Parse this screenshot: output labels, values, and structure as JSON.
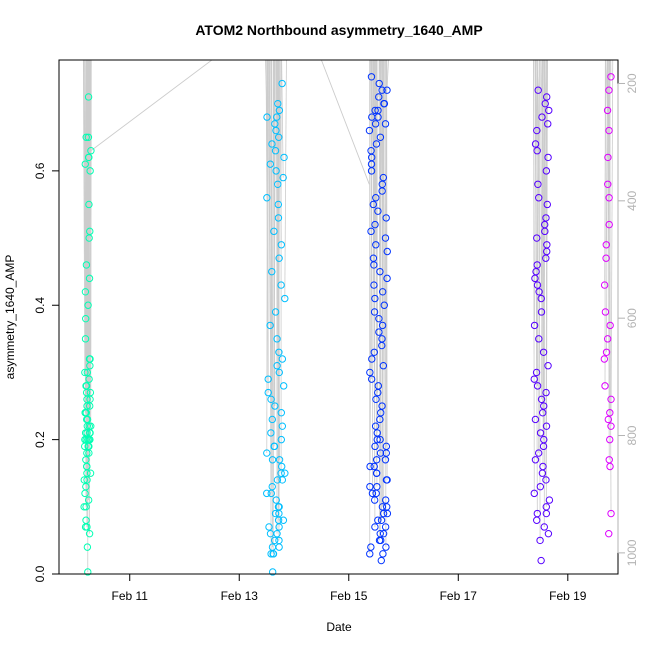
{
  "chart_data": {
    "type": "scatter",
    "title": "ATOM2 Northbound asymmetry_1640_AMP",
    "xlabel": "Date",
    "ylabel": "asymmetry_1640_AMP",
    "xlim": [
      "2015-02-09T17:00",
      "2015-02-19T22:00"
    ],
    "ylim": [
      0.0,
      0.765
    ],
    "x_ticks": [
      {
        "date": "2015-02-11",
        "label": "Feb 11"
      },
      {
        "date": "2015-02-13",
        "label": "Feb 13"
      },
      {
        "date": "2015-02-15",
        "label": "Feb 15"
      },
      {
        "date": "2015-02-17",
        "label": "Feb 17"
      },
      {
        "date": "2015-02-19",
        "label": "Feb 19"
      }
    ],
    "y_ticks": [
      0.0,
      0.2,
      0.4,
      0.6
    ],
    "y_tick_labels": [
      "0.0",
      "0.2",
      "0.4",
      "0.6"
    ],
    "right_axis": {
      "lim": [
        1036,
        160
      ],
      "ticks": [
        200,
        400,
        600,
        800,
        1000
      ],
      "tick_labels": [
        "200",
        "400",
        "600",
        "800",
        "1000"
      ],
      "color": "#b3b3b3"
    },
    "grid": false,
    "legend": "none",
    "line_color": "#cccccc",
    "series": [
      {
        "color": "#00ffb3",
        "x_range": [
          "2015-02-10T04:00",
          "2015-02-10T07:00"
        ],
        "values": [
          0.71,
          0.65,
          0.65,
          0.63,
          0.62,
          0.62,
          0.61,
          0.6,
          0.55,
          0.51,
          0.5,
          0.46,
          0.44,
          0.42,
          0.4,
          0.38,
          0.35,
          0.32,
          0.32,
          0.31,
          0.3,
          0.3,
          0.29,
          0.28,
          0.28,
          0.27,
          0.27,
          0.26,
          0.26,
          0.25,
          0.25,
          0.24,
          0.24,
          0.24,
          0.23,
          0.23,
          0.22,
          0.22,
          0.22,
          0.21,
          0.21,
          0.21,
          0.21,
          0.2,
          0.2,
          0.2,
          0.2,
          0.2,
          0.19,
          0.19,
          0.19,
          0.18,
          0.18,
          0.17,
          0.16,
          0.16,
          0.15,
          0.15,
          0.14,
          0.14,
          0.13,
          0.12,
          0.11,
          0.1,
          0.1,
          0.08,
          0.07,
          0.07,
          0.06,
          0.04,
          0.003
        ]
      },
      {
        "color": "#00bfff",
        "x_range": [
          "2015-02-13T12:00",
          "2015-02-13T20:00"
        ],
        "values": [
          0.73,
          0.7,
          0.69,
          0.68,
          0.68,
          0.67,
          0.66,
          0.65,
          0.64,
          0.63,
          0.62,
          0.61,
          0.6,
          0.59,
          0.58,
          0.56,
          0.55,
          0.53,
          0.51,
          0.49,
          0.47,
          0.45,
          0.43,
          0.41,
          0.39,
          0.37,
          0.35,
          0.33,
          0.32,
          0.31,
          0.3,
          0.29,
          0.28,
          0.27,
          0.26,
          0.25,
          0.24,
          0.23,
          0.22,
          0.21,
          0.2,
          0.19,
          0.19,
          0.18,
          0.17,
          0.17,
          0.16,
          0.15,
          0.15,
          0.14,
          0.14,
          0.13,
          0.12,
          0.12,
          0.11,
          0.1,
          0.1,
          0.09,
          0.09,
          0.08,
          0.08,
          0.07,
          0.07,
          0.06,
          0.06,
          0.05,
          0.05,
          0.04,
          0.04,
          0.03,
          0.03,
          0.03,
          0.003
        ]
      },
      {
        "color": "#0033ff",
        "x_range": [
          "2015-02-15T09:00",
          "2015-02-15T17:00"
        ],
        "values": [
          0.74,
          0.73,
          0.72,
          0.72,
          0.71,
          0.7,
          0.7,
          0.69,
          0.69,
          0.68,
          0.68,
          0.67,
          0.67,
          0.66,
          0.65,
          0.64,
          0.63,
          0.62,
          0.61,
          0.6,
          0.59,
          0.58,
          0.57,
          0.56,
          0.55,
          0.54,
          0.53,
          0.52,
          0.51,
          0.5,
          0.49,
          0.48,
          0.47,
          0.46,
          0.45,
          0.44,
          0.43,
          0.42,
          0.41,
          0.4,
          0.39,
          0.38,
          0.37,
          0.36,
          0.35,
          0.34,
          0.33,
          0.32,
          0.31,
          0.3,
          0.29,
          0.28,
          0.27,
          0.26,
          0.25,
          0.24,
          0.23,
          0.22,
          0.21,
          0.2,
          0.2,
          0.19,
          0.19,
          0.18,
          0.18,
          0.17,
          0.17,
          0.16,
          0.16,
          0.15,
          0.15,
          0.14,
          0.14,
          0.13,
          0.13,
          0.12,
          0.12,
          0.11,
          0.11,
          0.1,
          0.1,
          0.09,
          0.09,
          0.08,
          0.08,
          0.07,
          0.07,
          0.06,
          0.06,
          0.05,
          0.05,
          0.04,
          0.04,
          0.03,
          0.03,
          0.02
        ]
      },
      {
        "color": "#5500ff",
        "x_range": [
          "2015-02-18T09:00",
          "2015-02-18T16:00"
        ],
        "values": [
          0.72,
          0.71,
          0.7,
          0.69,
          0.68,
          0.67,
          0.66,
          0.64,
          0.63,
          0.62,
          0.6,
          0.58,
          0.56,
          0.55,
          0.53,
          0.52,
          0.51,
          0.5,
          0.49,
          0.48,
          0.47,
          0.46,
          0.45,
          0.44,
          0.43,
          0.42,
          0.41,
          0.39,
          0.37,
          0.35,
          0.33,
          0.31,
          0.3,
          0.29,
          0.28,
          0.27,
          0.26,
          0.25,
          0.24,
          0.23,
          0.22,
          0.21,
          0.2,
          0.19,
          0.18,
          0.17,
          0.16,
          0.15,
          0.14,
          0.13,
          0.12,
          0.11,
          0.1,
          0.09,
          0.09,
          0.08,
          0.07,
          0.06,
          0.05,
          0.02
        ]
      },
      {
        "color": "#dd00ff",
        "x_range": [
          "2015-02-19T16:00",
          "2015-02-19T19:00"
        ],
        "values": [
          0.74,
          0.72,
          0.69,
          0.66,
          0.62,
          0.58,
          0.56,
          0.52,
          0.49,
          0.47,
          0.43,
          0.39,
          0.37,
          0.35,
          0.33,
          0.32,
          0.28,
          0.26,
          0.24,
          0.23,
          0.22,
          0.2,
          0.17,
          0.16,
          0.09,
          0.06
        ]
      }
    ]
  }
}
